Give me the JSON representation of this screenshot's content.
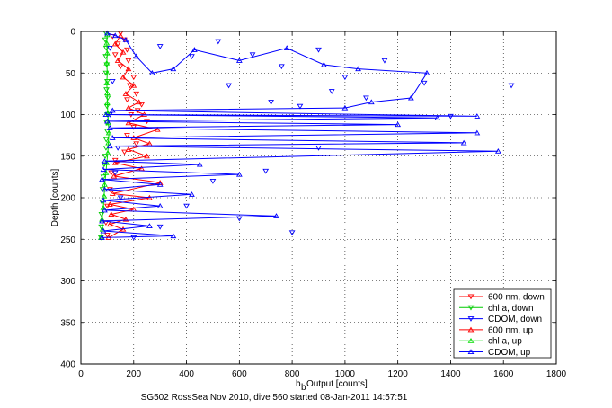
{
  "chart_data": {
    "type": "scatter",
    "xlabel_main": "b",
    "xlabel_sub": "b",
    "xlabel_rest": " Output [counts]",
    "ylabel": "Depth [counts]",
    "caption": "SG502 RossSea Nov 2010, dive 560 started 08-Jan-2011 14:57:51",
    "xlim": [
      0,
      1800
    ],
    "ylim": [
      0,
      400
    ],
    "y_reversed": true,
    "grid": true,
    "legend_position": "bottom-right",
    "xticks": [
      0,
      200,
      400,
      600,
      800,
      1000,
      1200,
      1400,
      1600,
      1800
    ],
    "yticks": [
      0,
      50,
      100,
      150,
      200,
      250,
      300,
      350,
      400
    ],
    "series": [
      {
        "name": "600 nm, down",
        "color": "#ff0000",
        "marker": "down",
        "line": false,
        "points": [
          [
            150,
            2
          ],
          [
            120,
            6
          ],
          [
            165,
            10
          ],
          [
            140,
            15
          ],
          [
            175,
            22
          ],
          [
            130,
            28
          ],
          [
            180,
            35
          ],
          [
            150,
            42
          ],
          [
            200,
            55
          ],
          [
            185,
            65
          ],
          [
            210,
            75
          ],
          [
            175,
            82
          ],
          [
            230,
            88
          ],
          [
            215,
            95
          ],
          [
            190,
            100
          ],
          [
            250,
            108
          ],
          [
            200,
            115
          ],
          [
            175,
            125
          ],
          [
            210,
            135
          ],
          [
            165,
            145
          ],
          [
            130,
            155
          ],
          [
            115,
            170
          ],
          [
            110,
            190
          ],
          [
            100,
            210
          ],
          [
            95,
            230
          ],
          [
            100,
            245
          ]
        ]
      },
      {
        "name": "chl a, down",
        "color": "#00cc00",
        "marker": "down",
        "line": false,
        "points": [
          [
            95,
            2
          ],
          [
            92,
            10
          ],
          [
            96,
            20
          ],
          [
            94,
            30
          ],
          [
            98,
            40
          ],
          [
            95,
            50
          ],
          [
            100,
            60
          ],
          [
            97,
            70
          ],
          [
            102,
            80
          ],
          [
            99,
            90
          ],
          [
            100,
            100
          ],
          [
            98,
            110
          ],
          [
            100,
            120
          ],
          [
            96,
            130
          ],
          [
            95,
            140
          ],
          [
            92,
            150
          ],
          [
            88,
            160
          ],
          [
            85,
            175
          ],
          [
            82,
            190
          ],
          [
            80,
            205
          ],
          [
            78,
            220
          ],
          [
            77,
            235
          ],
          [
            76,
            248
          ]
        ]
      },
      {
        "name": "CDOM, down",
        "color": "#0000ff",
        "marker": "down",
        "line": false,
        "points": [
          [
            300,
            18
          ],
          [
            420,
            30
          ],
          [
            520,
            12
          ],
          [
            650,
            28
          ],
          [
            760,
            42
          ],
          [
            900,
            22
          ],
          [
            1000,
            55
          ],
          [
            1150,
            35
          ],
          [
            1300,
            62
          ],
          [
            1630,
            65
          ],
          [
            1080,
            80
          ],
          [
            950,
            72
          ],
          [
            830,
            90
          ],
          [
            720,
            85
          ],
          [
            560,
            65
          ],
          [
            1400,
            102
          ],
          [
            900,
            140
          ],
          [
            700,
            168
          ],
          [
            500,
            180
          ],
          [
            400,
            210
          ],
          [
            800,
            242
          ],
          [
            600,
            225
          ],
          [
            300,
            235
          ],
          [
            200,
            248
          ],
          [
            150,
            200
          ],
          [
            130,
            170
          ],
          [
            140,
            140
          ],
          [
            110,
            100
          ],
          [
            120,
            60
          ],
          [
            110,
            20
          ]
        ]
      },
      {
        "name": "600 nm, up",
        "color": "#ff0000",
        "marker": "up",
        "line": true,
        "points": [
          [
            105,
            248
          ],
          [
            160,
            238
          ],
          [
            110,
            232
          ],
          [
            170,
            226
          ],
          [
            115,
            220
          ],
          [
            200,
            214
          ],
          [
            110,
            208
          ],
          [
            260,
            200
          ],
          [
            120,
            195
          ],
          [
            300,
            182
          ],
          [
            125,
            174
          ],
          [
            230,
            165
          ],
          [
            130,
            158
          ],
          [
            250,
            150
          ],
          [
            180,
            142
          ],
          [
            260,
            135
          ],
          [
            200,
            128
          ],
          [
            290,
            118
          ],
          [
            180,
            110
          ],
          [
            240,
            100
          ],
          [
            180,
            92
          ],
          [
            220,
            85
          ],
          [
            170,
            75
          ],
          [
            200,
            65
          ],
          [
            160,
            55
          ],
          [
            180,
            45
          ],
          [
            140,
            35
          ],
          [
            160,
            25
          ],
          [
            130,
            15
          ],
          [
            150,
            5
          ]
        ]
      },
      {
        "name": "chl a, up",
        "color": "#00dd00",
        "marker": "up",
        "line": true,
        "points": [
          [
            76,
            248
          ],
          [
            82,
            238
          ],
          [
            80,
            226
          ],
          [
            85,
            212
          ],
          [
            88,
            198
          ],
          [
            90,
            184
          ],
          [
            95,
            170
          ],
          [
            98,
            158
          ],
          [
            102,
            146
          ],
          [
            104,
            134
          ],
          [
            106,
            122
          ],
          [
            104,
            110
          ],
          [
            102,
            98
          ],
          [
            100,
            86
          ],
          [
            100,
            74
          ],
          [
            98,
            62
          ],
          [
            100,
            50
          ],
          [
            98,
            38
          ],
          [
            100,
            26
          ],
          [
            98,
            14
          ],
          [
            100,
            4
          ]
        ]
      },
      {
        "name": "CDOM, up",
        "color": "#0000ff",
        "marker": "up",
        "line": true,
        "points": [
          [
            80,
            248
          ],
          [
            350,
            246
          ],
          [
            85,
            240
          ],
          [
            260,
            234
          ],
          [
            80,
            228
          ],
          [
            740,
            222
          ],
          [
            90,
            215
          ],
          [
            300,
            210
          ],
          [
            85,
            203
          ],
          [
            420,
            196
          ],
          [
            90,
            190
          ],
          [
            300,
            184
          ],
          [
            80,
            178
          ],
          [
            600,
            172
          ],
          [
            85,
            166
          ],
          [
            450,
            160
          ],
          [
            90,
            156
          ],
          [
            1580,
            144
          ],
          [
            110,
            138
          ],
          [
            1450,
            134
          ],
          [
            120,
            128
          ],
          [
            1500,
            122
          ],
          [
            110,
            116
          ],
          [
            1200,
            112
          ],
          [
            100,
            108
          ],
          [
            1350,
            104
          ],
          [
            95,
            100
          ],
          [
            1500,
            102
          ],
          [
            120,
            95
          ],
          [
            1000,
            92
          ],
          [
            1100,
            85
          ],
          [
            1250,
            80
          ],
          [
            1310,
            50
          ],
          [
            1050,
            45
          ],
          [
            920,
            40
          ],
          [
            780,
            20
          ],
          [
            600,
            35
          ],
          [
            430,
            22
          ],
          [
            350,
            45
          ],
          [
            270,
            50
          ],
          [
            210,
            30
          ],
          [
            170,
            10
          ],
          [
            130,
            5
          ],
          [
            100,
            2
          ]
        ]
      }
    ]
  }
}
